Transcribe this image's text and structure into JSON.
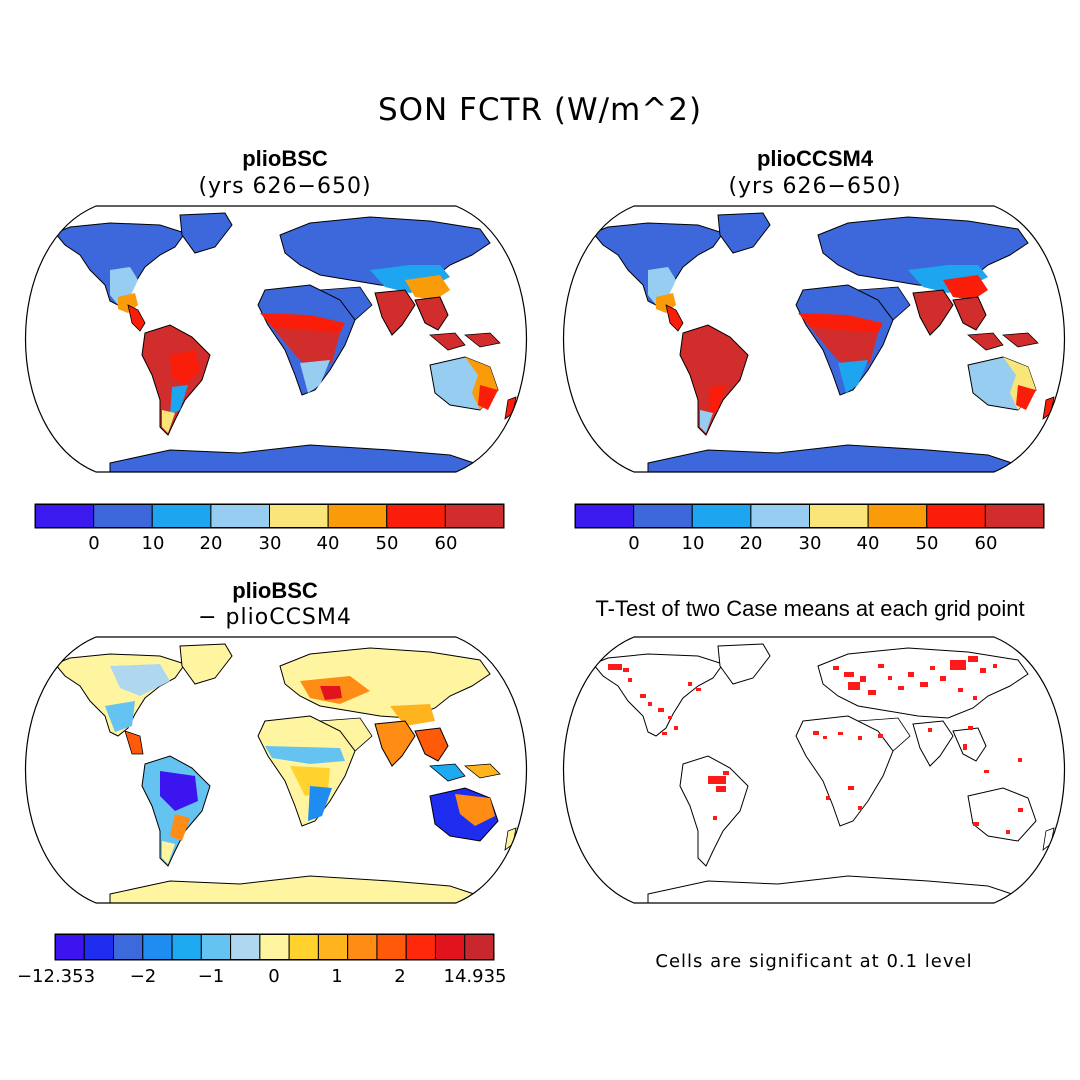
{
  "figure": {
    "title": "SON FCTR (W/m^2)"
  },
  "panels": {
    "top_left": {
      "title": "plioBSC",
      "subtitle": "(yrs 626−650)"
    },
    "top_right": {
      "title": "plioCCSM4",
      "subtitle": "(yrs 626−650)"
    },
    "bottom_left": {
      "title": "plioBSC",
      "subtitle": "− plioCCSM4"
    },
    "bottom_right": {
      "title": "T-Test of two Case means at each grid point",
      "note": "Cells are significant at 0.1 level"
    }
  },
  "colorbars": {
    "top": {
      "colors": [
        "#3b1af0",
        "#3c68dc",
        "#1ea5f0",
        "#96cdf0",
        "#fae678",
        "#fa9b0a",
        "#fa1e0a",
        "#d22d2d"
      ],
      "tick_labels": [
        "0",
        "10",
        "20",
        "30",
        "40",
        "50",
        "60"
      ]
    },
    "diff": {
      "colors": [
        "#3c14f0",
        "#1e2df0",
        "#3c69dc",
        "#1e8cf0",
        "#1eaaf0",
        "#64c3f0",
        "#afd7f0",
        "#fff5a0",
        "#ffd22d",
        "#ffb41e",
        "#ff8c14",
        "#ff5a0a",
        "#ff280a",
        "#e1141e",
        "#c8282d"
      ],
      "tick_labels": [
        "−12.353",
        "−2",
        "−1",
        "0",
        "1",
        "2",
        "14.935"
      ]
    }
  },
  "colors": {
    "ocean": "#ffffff",
    "coast": "#000000",
    "significant": "#ff1a1a"
  }
}
